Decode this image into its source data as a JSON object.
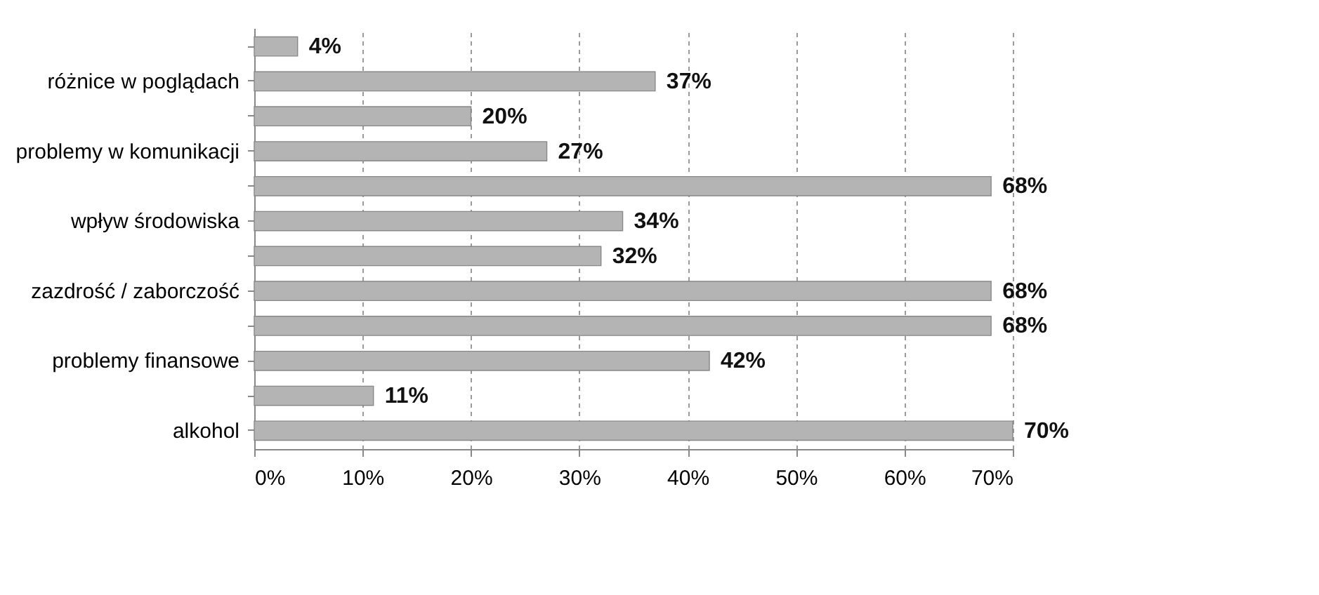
{
  "chart_data": {
    "type": "bar",
    "orientation": "horizontal",
    "categories": [
      null,
      "różnice w poglądach",
      null,
      "problemy w komunikacji",
      null,
      "wpływ środowiska",
      null,
      "zazdrość / zaborczość",
      null,
      "problemy finansowe",
      null,
      "alkohol"
    ],
    "values": [
      4,
      37,
      20,
      27,
      68,
      34,
      32,
      68,
      68,
      42,
      11,
      70
    ],
    "value_labels": [
      "4%",
      "37%",
      "20%",
      "27%",
      "68%",
      "34%",
      "32%",
      "68%",
      "68%",
      "42%",
      "11%",
      "70%"
    ],
    "color": "#b4b4b4",
    "xlim": [
      0,
      70
    ],
    "xticks": [
      {
        "value": 0,
        "label": "0%"
      },
      {
        "value": 10,
        "label": "10%"
      },
      {
        "value": 20,
        "label": "20%"
      },
      {
        "value": 30,
        "label": "30%"
      },
      {
        "value": 40,
        "label": "40%"
      },
      {
        "value": 50,
        "label": "50%"
      },
      {
        "value": 60,
        "label": "60%"
      },
      {
        "value": 70,
        "label": "70%"
      }
    ],
    "grid": "x"
  }
}
